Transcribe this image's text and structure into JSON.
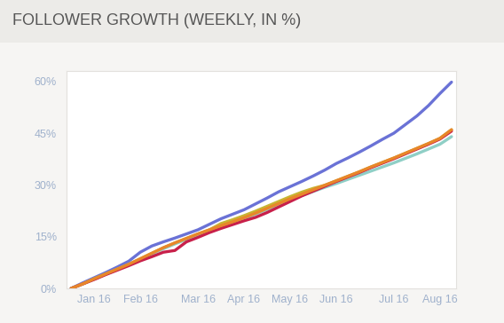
{
  "chart_data": {
    "type": "line",
    "title": "FOLLOWER GROWTH (WEEKLY, IN %)",
    "categories": [
      null,
      null,
      "Jan 16",
      null,
      null,
      null,
      "Feb 16",
      null,
      null,
      null,
      null,
      "Mar 16",
      null,
      null,
      null,
      "Apr 16",
      null,
      null,
      null,
      "May 16",
      null,
      null,
      null,
      "Jun 16",
      null,
      null,
      null,
      null,
      "Jul 16",
      null,
      null,
      null,
      "Aug 16",
      null
    ],
    "series": [
      {
        "color": "#6a72d6",
        "values": [
          0,
          1.6,
          3.1,
          4.6,
          6.2,
          7.9,
          10.5,
          12.3,
          13.5,
          14.6,
          15.8,
          17.0,
          18.6,
          20.2,
          21.5,
          22.8,
          24.5,
          26.2,
          28.0,
          29.5,
          31.0,
          32.6,
          34.3,
          36.2,
          37.8,
          39.5,
          41.3,
          43.2,
          45.0,
          47.5,
          50.0,
          53.0,
          56.5,
          59.8
        ]
      },
      {
        "color": "#c8b432",
        "values": [
          0,
          1.3,
          2.8,
          4.2,
          5.6,
          7.0,
          8.6,
          10.2,
          11.8,
          13.2,
          14.5,
          15.8,
          17.0,
          18.8,
          19.9,
          21.1,
          22.4,
          23.8,
          25.2,
          26.6,
          27.9,
          29.0,
          29.9,
          31.2,
          32.5,
          33.8,
          35.2,
          36.5,
          37.8,
          39.2,
          40.6,
          42.0,
          43.5,
          46.0
        ]
      },
      {
        "color": "#8fcfc6",
        "values": [
          0,
          1.3,
          2.7,
          4.1,
          5.5,
          6.9,
          8.4,
          10.0,
          11.5,
          12.9,
          14.2,
          15.5,
          16.8,
          18.0,
          19.1,
          20.3,
          21.5,
          22.9,
          24.3,
          25.6,
          26.9,
          28.1,
          29.3,
          30.4,
          31.6,
          32.8,
          34.0,
          35.2,
          36.4,
          37.7,
          39.0,
          40.4,
          41.8,
          44.0
        ]
      },
      {
        "color": "#c8204a",
        "values": [
          0,
          1.3,
          2.6,
          4.0,
          5.3,
          6.6,
          8.0,
          9.2,
          10.5,
          11.0,
          13.5,
          14.8,
          16.2,
          17.4,
          18.5,
          19.6,
          20.6,
          22.0,
          23.6,
          25.2,
          26.8,
          28.2,
          29.6,
          31.0,
          32.3,
          33.6,
          35.0,
          36.3,
          37.6,
          39.0,
          40.4,
          41.8,
          43.3,
          45.6
        ]
      },
      {
        "color": "#e8862a",
        "values": [
          0,
          1.3,
          2.8,
          4.2,
          5.6,
          7.0,
          8.6,
          10.2,
          11.8,
          13.2,
          14.5,
          15.8,
          17.0,
          18.2,
          19.3,
          20.5,
          21.8,
          23.2,
          24.6,
          26.0,
          27.3,
          28.6,
          29.9,
          31.2,
          32.5,
          33.8,
          35.2,
          36.5,
          37.8,
          39.2,
          40.6,
          42.0,
          43.5,
          46.0
        ]
      }
    ],
    "ylim": [
      0,
      63
    ],
    "yticks": [
      {
        "value": 0,
        "label": "0%"
      },
      {
        "value": 15,
        "label": "15%"
      },
      {
        "value": 30,
        "label": "30%"
      },
      {
        "value": 45,
        "label": "45%"
      },
      {
        "value": 60,
        "label": "60%"
      }
    ],
    "grid": false
  }
}
